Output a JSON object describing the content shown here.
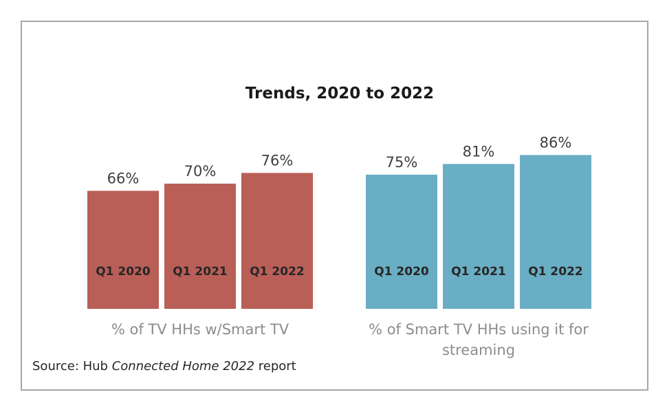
{
  "chart_data": {
    "type": "bar",
    "title": "Trends, 2020 to 2022",
    "categories": [
      "Q1 2020",
      "Q1 2021",
      "Q1 2022"
    ],
    "series": [
      {
        "name": "% of TV HHs w/Smart TV",
        "values": [
          66,
          70,
          76
        ],
        "labels": [
          "66%",
          "70%",
          "76%"
        ],
        "color": "#b95f58"
      },
      {
        "name": "% of Smart TV HHs using it for streaming",
        "name_lines": [
          "% of Smart TV HHs using it for",
          "streaming"
        ],
        "values": [
          75,
          81,
          86
        ],
        "labels": [
          "75%",
          "81%",
          "86%"
        ],
        "color": "#69aec5"
      }
    ],
    "ylim": [
      0,
      100
    ],
    "grid": false,
    "legend": "none"
  },
  "source": {
    "prefix": "Source: Hub ",
    "italic": "Connected Home 2022",
    "suffix": " report"
  }
}
